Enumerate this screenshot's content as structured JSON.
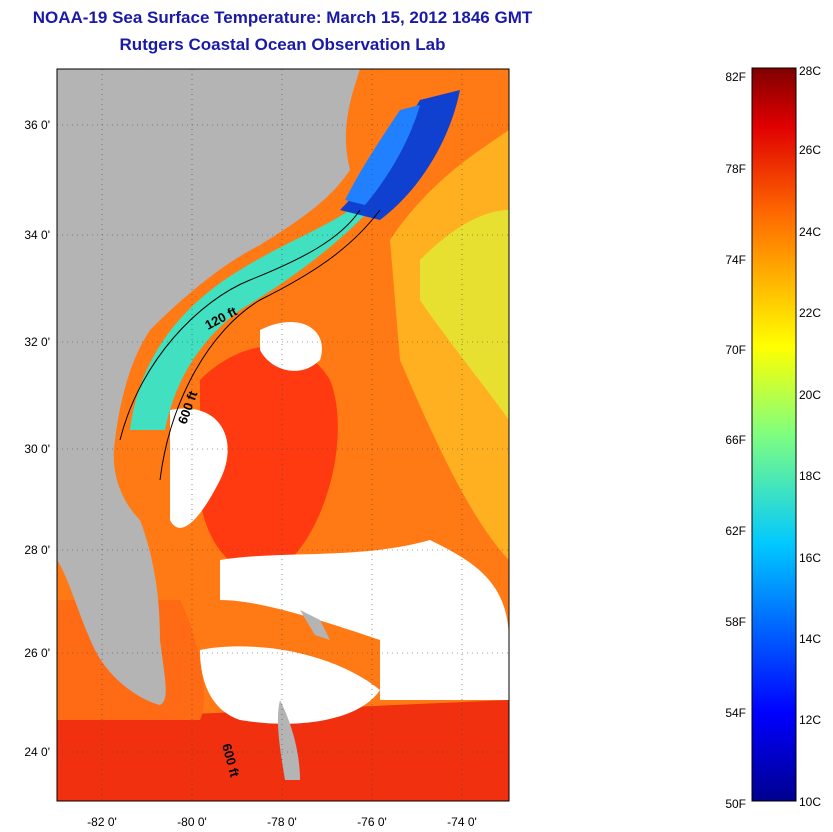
{
  "title": "NOAA-19 Sea Surface Temperature:  March 15, 2012 1846 GMT",
  "subtitle": "Rutgers Coastal Ocean Observation Lab",
  "map": {
    "lat_labels": [
      "36 0'",
      "34 0'",
      "32 0'",
      "30 0'",
      "28 0'",
      "26 0'",
      "24 0'"
    ],
    "lon_labels": [
      "-82 0'",
      "-80 0'",
      "-78 0'",
      "-76 0'",
      "-74 0'"
    ],
    "contour_labels": [
      "120 ft",
      "600 ft",
      "600 ft"
    ],
    "colors": {
      "land": "#b4b4b4",
      "cloud": "#ffffff",
      "warm": "#ff5a1a",
      "cold": "#1040d0",
      "contour": "#000000"
    }
  },
  "colorbar": {
    "fahrenheit_labels": [
      "82F",
      "78F",
      "74F",
      "70F",
      "66F",
      "62F",
      "58F",
      "54F",
      "50F"
    ],
    "celsius_labels": [
      "28C",
      "26C",
      "24C",
      "22C",
      "20C",
      "18C",
      "16C",
      "14C",
      "12C",
      "10C"
    ],
    "range_c": [
      10,
      28
    ],
    "range_f": [
      50,
      82
    ]
  }
}
